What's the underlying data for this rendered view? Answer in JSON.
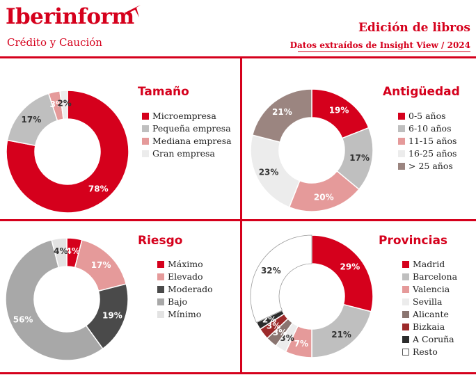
{
  "header": {
    "brand": "Iberinform",
    "tagline": "Crédito y Caución",
    "title": "Edición de libros",
    "subtitle": "Datos extraídos de Insight View / 2024"
  },
  "colors": {
    "brand_red": "#d5001c"
  },
  "chart_data": [
    {
      "type": "pie",
      "title": "Tamaño",
      "categories": [
        "Microempresa",
        "Pequeña empresa",
        "Mediana empresa",
        "Gran empresa"
      ],
      "values": [
        78,
        17,
        3,
        2
      ],
      "labels": [
        "78%",
        "17%",
        "3%",
        "2%"
      ],
      "colors": [
        "#d5001c",
        "#bfbfbf",
        "#e59a9a",
        "#ececec"
      ],
      "label_colors": [
        "#ffffff",
        "#333333",
        "#ffffff",
        "#333333"
      ],
      "legend_position": "right"
    },
    {
      "type": "pie",
      "title": "Antigüedad",
      "categories": [
        "0-5 años",
        "6-10 años",
        "11-15 años",
        "16-25 años",
        "> 25 años"
      ],
      "values": [
        19,
        17,
        20,
        23,
        21
      ],
      "labels": [
        "19%",
        "17%",
        "20%",
        "23%",
        "21%"
      ],
      "colors": [
        "#d5001c",
        "#bfbfbf",
        "#e59a9a",
        "#ececec",
        "#9b8580"
      ],
      "label_colors": [
        "#ffffff",
        "#333333",
        "#ffffff",
        "#333333",
        "#ffffff"
      ],
      "legend_position": "right"
    },
    {
      "type": "pie",
      "title": "Riesgo",
      "categories": [
        "Máximo",
        "Elevado",
        "Moderado",
        "Bajo",
        "Mínimo"
      ],
      "values": [
        4,
        17,
        19,
        56,
        4
      ],
      "labels": [
        "4%",
        "17%",
        "19%",
        "56%",
        "4%"
      ],
      "colors": [
        "#d5001c",
        "#e59a9a",
        "#4a4a4a",
        "#a8a8a8",
        "#e3e3e3"
      ],
      "label_colors": [
        "#ffffff",
        "#ffffff",
        "#ffffff",
        "#ffffff",
        "#333333"
      ],
      "legend_position": "right"
    },
    {
      "type": "pie",
      "title": "Provincias",
      "categories": [
        "Madrid",
        "Barcelona",
        "Valencia",
        "Sevilla",
        "Alicante",
        "Bizkaia",
        "A Coruña",
        "Resto"
      ],
      "values": [
        29,
        21,
        7,
        3,
        3,
        3,
        2,
        32
      ],
      "labels": [
        "29%",
        "21%",
        "7%",
        "3%",
        "3%",
        "3%",
        "2%",
        "32%"
      ],
      "colors": [
        "#d5001c",
        "#bfbfbf",
        "#e59a9a",
        "#ececec",
        "#8a7570",
        "#9c2a2a",
        "#2b2b2b",
        "#ffffff"
      ],
      "label_colors": [
        "#ffffff",
        "#333333",
        "#ffffff",
        "#333333",
        "#ffffff",
        "#ffffff",
        "#ffffff",
        "#333333"
      ],
      "legend_position": "right"
    }
  ]
}
